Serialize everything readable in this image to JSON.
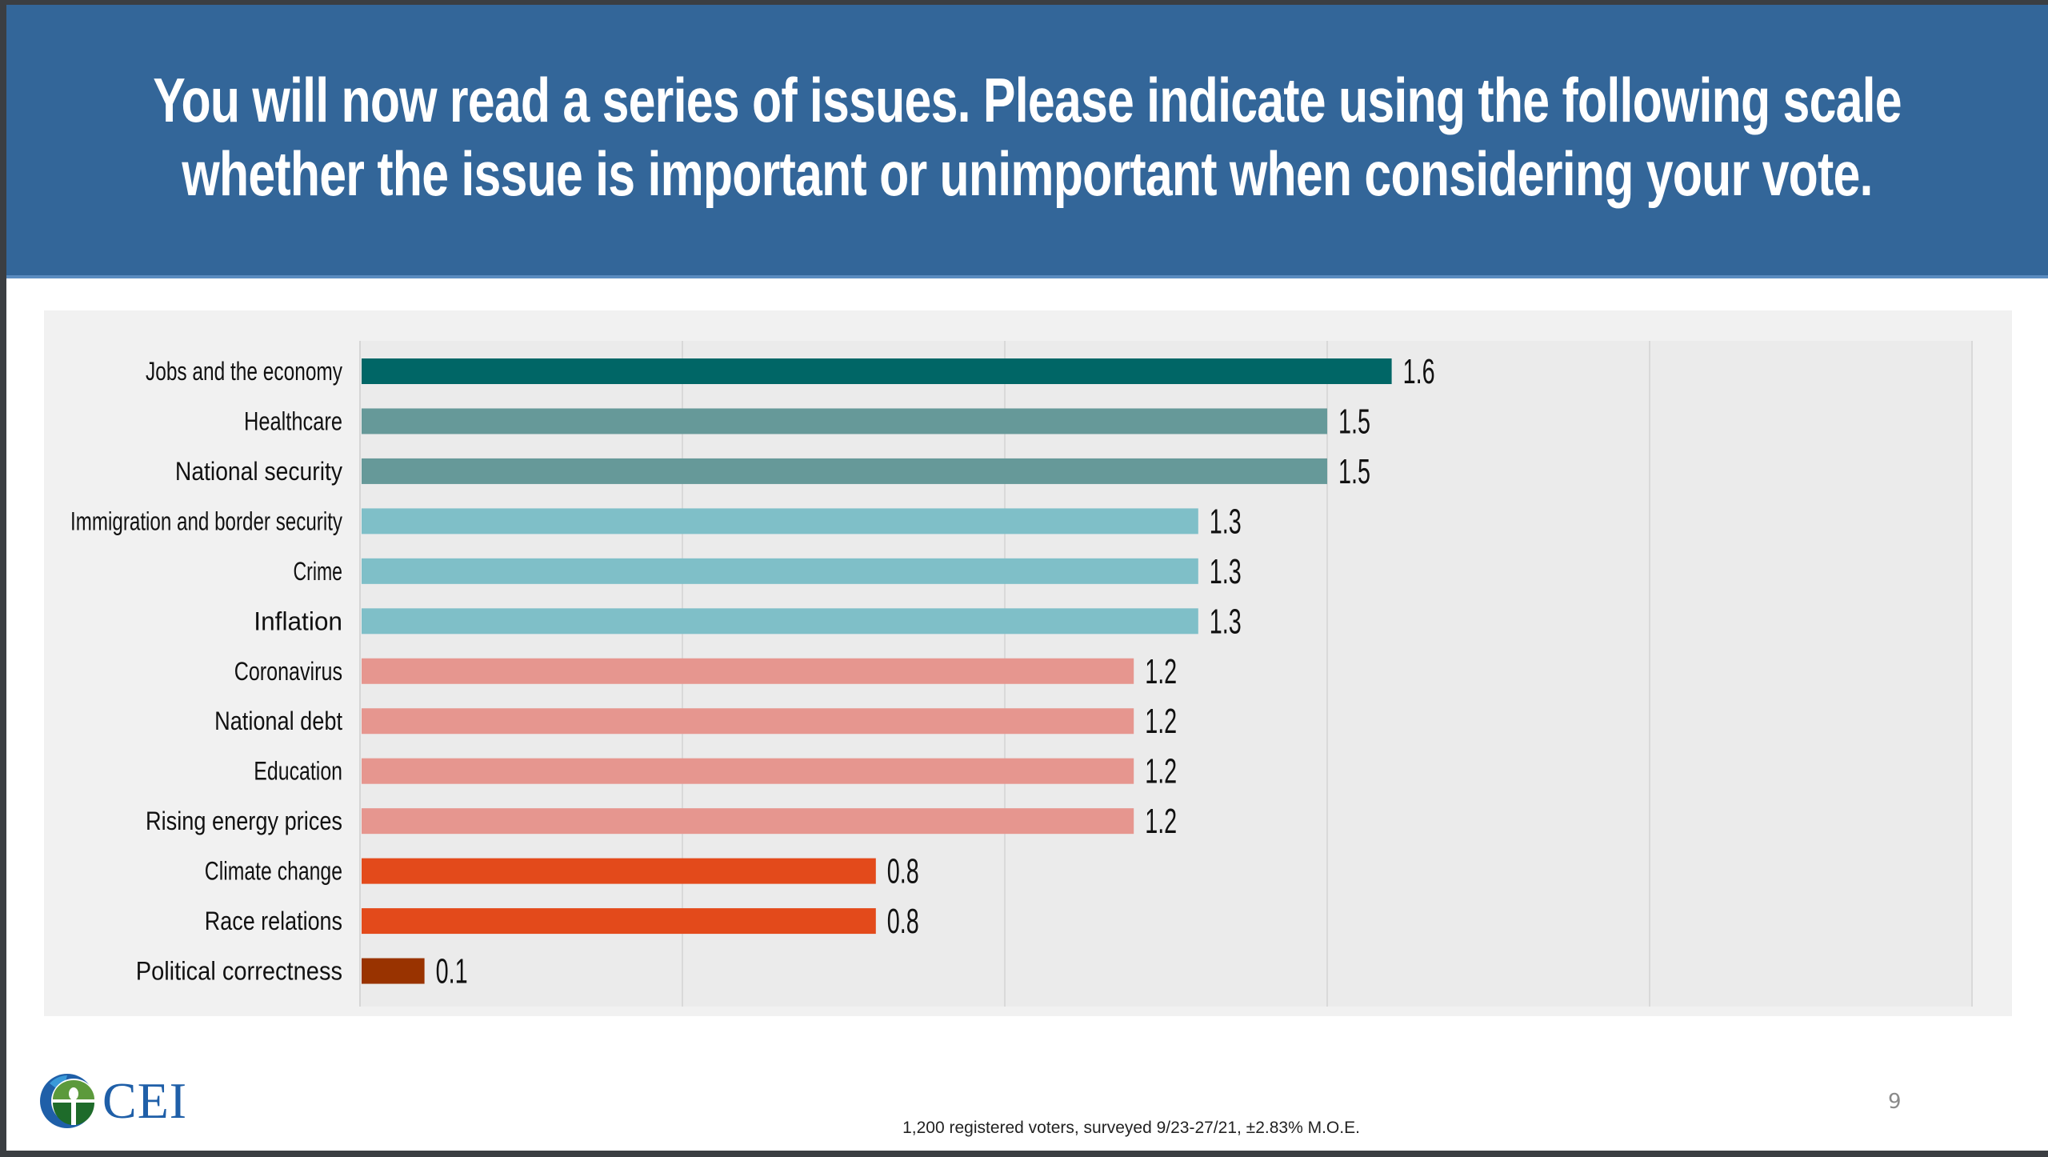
{
  "header": {
    "title_line1": "You will now read a series of issues. Please indicate using the following scale",
    "title_line2": "whether the issue is important or unimportant when considering your vote."
  },
  "chart_data": {
    "type": "bar",
    "orientation": "horizontal",
    "title": "You will now read a series of issues. Please indicate using the following scale whether the issue is important or unimportant when considering your vote.",
    "xlabel": "",
    "ylabel": "",
    "grid": true,
    "gridlines_at": [
      0,
      0.5,
      1.0,
      1.5,
      2.0,
      2.5
    ],
    "xlim": [
      0,
      2.5
    ],
    "categories": [
      "Jobs and the economy",
      "Healthcare",
      "National security",
      "Immigration and border security",
      "Crime",
      "Inflation",
      "Coronavirus",
      "National debt",
      "Education",
      "Rising energy prices",
      "Climate change",
      "Race relations",
      "Political correctness"
    ],
    "values": [
      1.6,
      1.5,
      1.5,
      1.3,
      1.3,
      1.3,
      1.2,
      1.2,
      1.2,
      1.2,
      0.8,
      0.8,
      0.1
    ],
    "value_labels": [
      "1.6",
      "1.5",
      "1.5",
      "1.3",
      "1.3",
      "1.3",
      "1.2",
      "1.2",
      "1.2",
      "1.2",
      "0.8",
      "0.8",
      "0.1"
    ],
    "colors": [
      "#006666",
      "#669999",
      "#669999",
      "#7fbfc8",
      "#7fbfc8",
      "#7fbfc8",
      "#e6968f",
      "#e6968f",
      "#e6968f",
      "#e6968f",
      "#e34a1b",
      "#e34a1b",
      "#993300"
    ],
    "legend": "none"
  },
  "footer": {
    "logo_text": "CEI",
    "note": "1,200 registered voters, surveyed 9/23-27/21, ±2.83% M.O.E.",
    "page_number": "9"
  }
}
